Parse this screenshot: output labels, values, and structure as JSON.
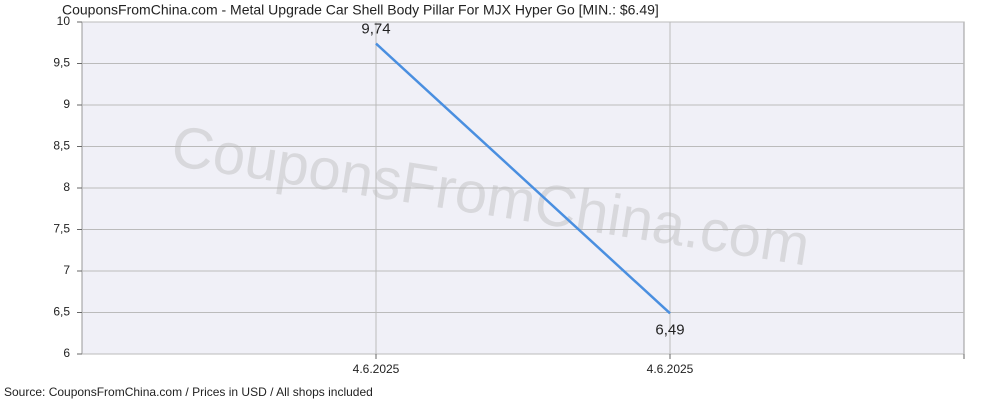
{
  "chart_data": {
    "type": "line",
    "title": "CouponsFromChina.com - Metal Upgrade Car Shell Body Pillar For MJX Hyper Go [MIN.: $6.49]",
    "watermark": "CouponsFromChina.com",
    "footer": "Source: CouponsFromChina.com / Prices in USD / All shops included",
    "categories": [
      "4.6.2025",
      "4.6.2025"
    ],
    "series": [
      {
        "color": "#4a8fe0",
        "values": [
          9.74,
          6.49
        ],
        "value_labels": [
          "9,74",
          "6,49"
        ]
      }
    ],
    "ylim": [
      6,
      10
    ],
    "yticks": [
      6,
      {
        "value": 6.5,
        "label": "6,5"
      },
      7,
      {
        "value": 7.5,
        "label": "7,5"
      },
      8,
      {
        "value": 8.5,
        "label": "8,5"
      },
      9,
      {
        "value": 9.5,
        "label": "9,5"
      },
      10
    ],
    "grid": true
  }
}
